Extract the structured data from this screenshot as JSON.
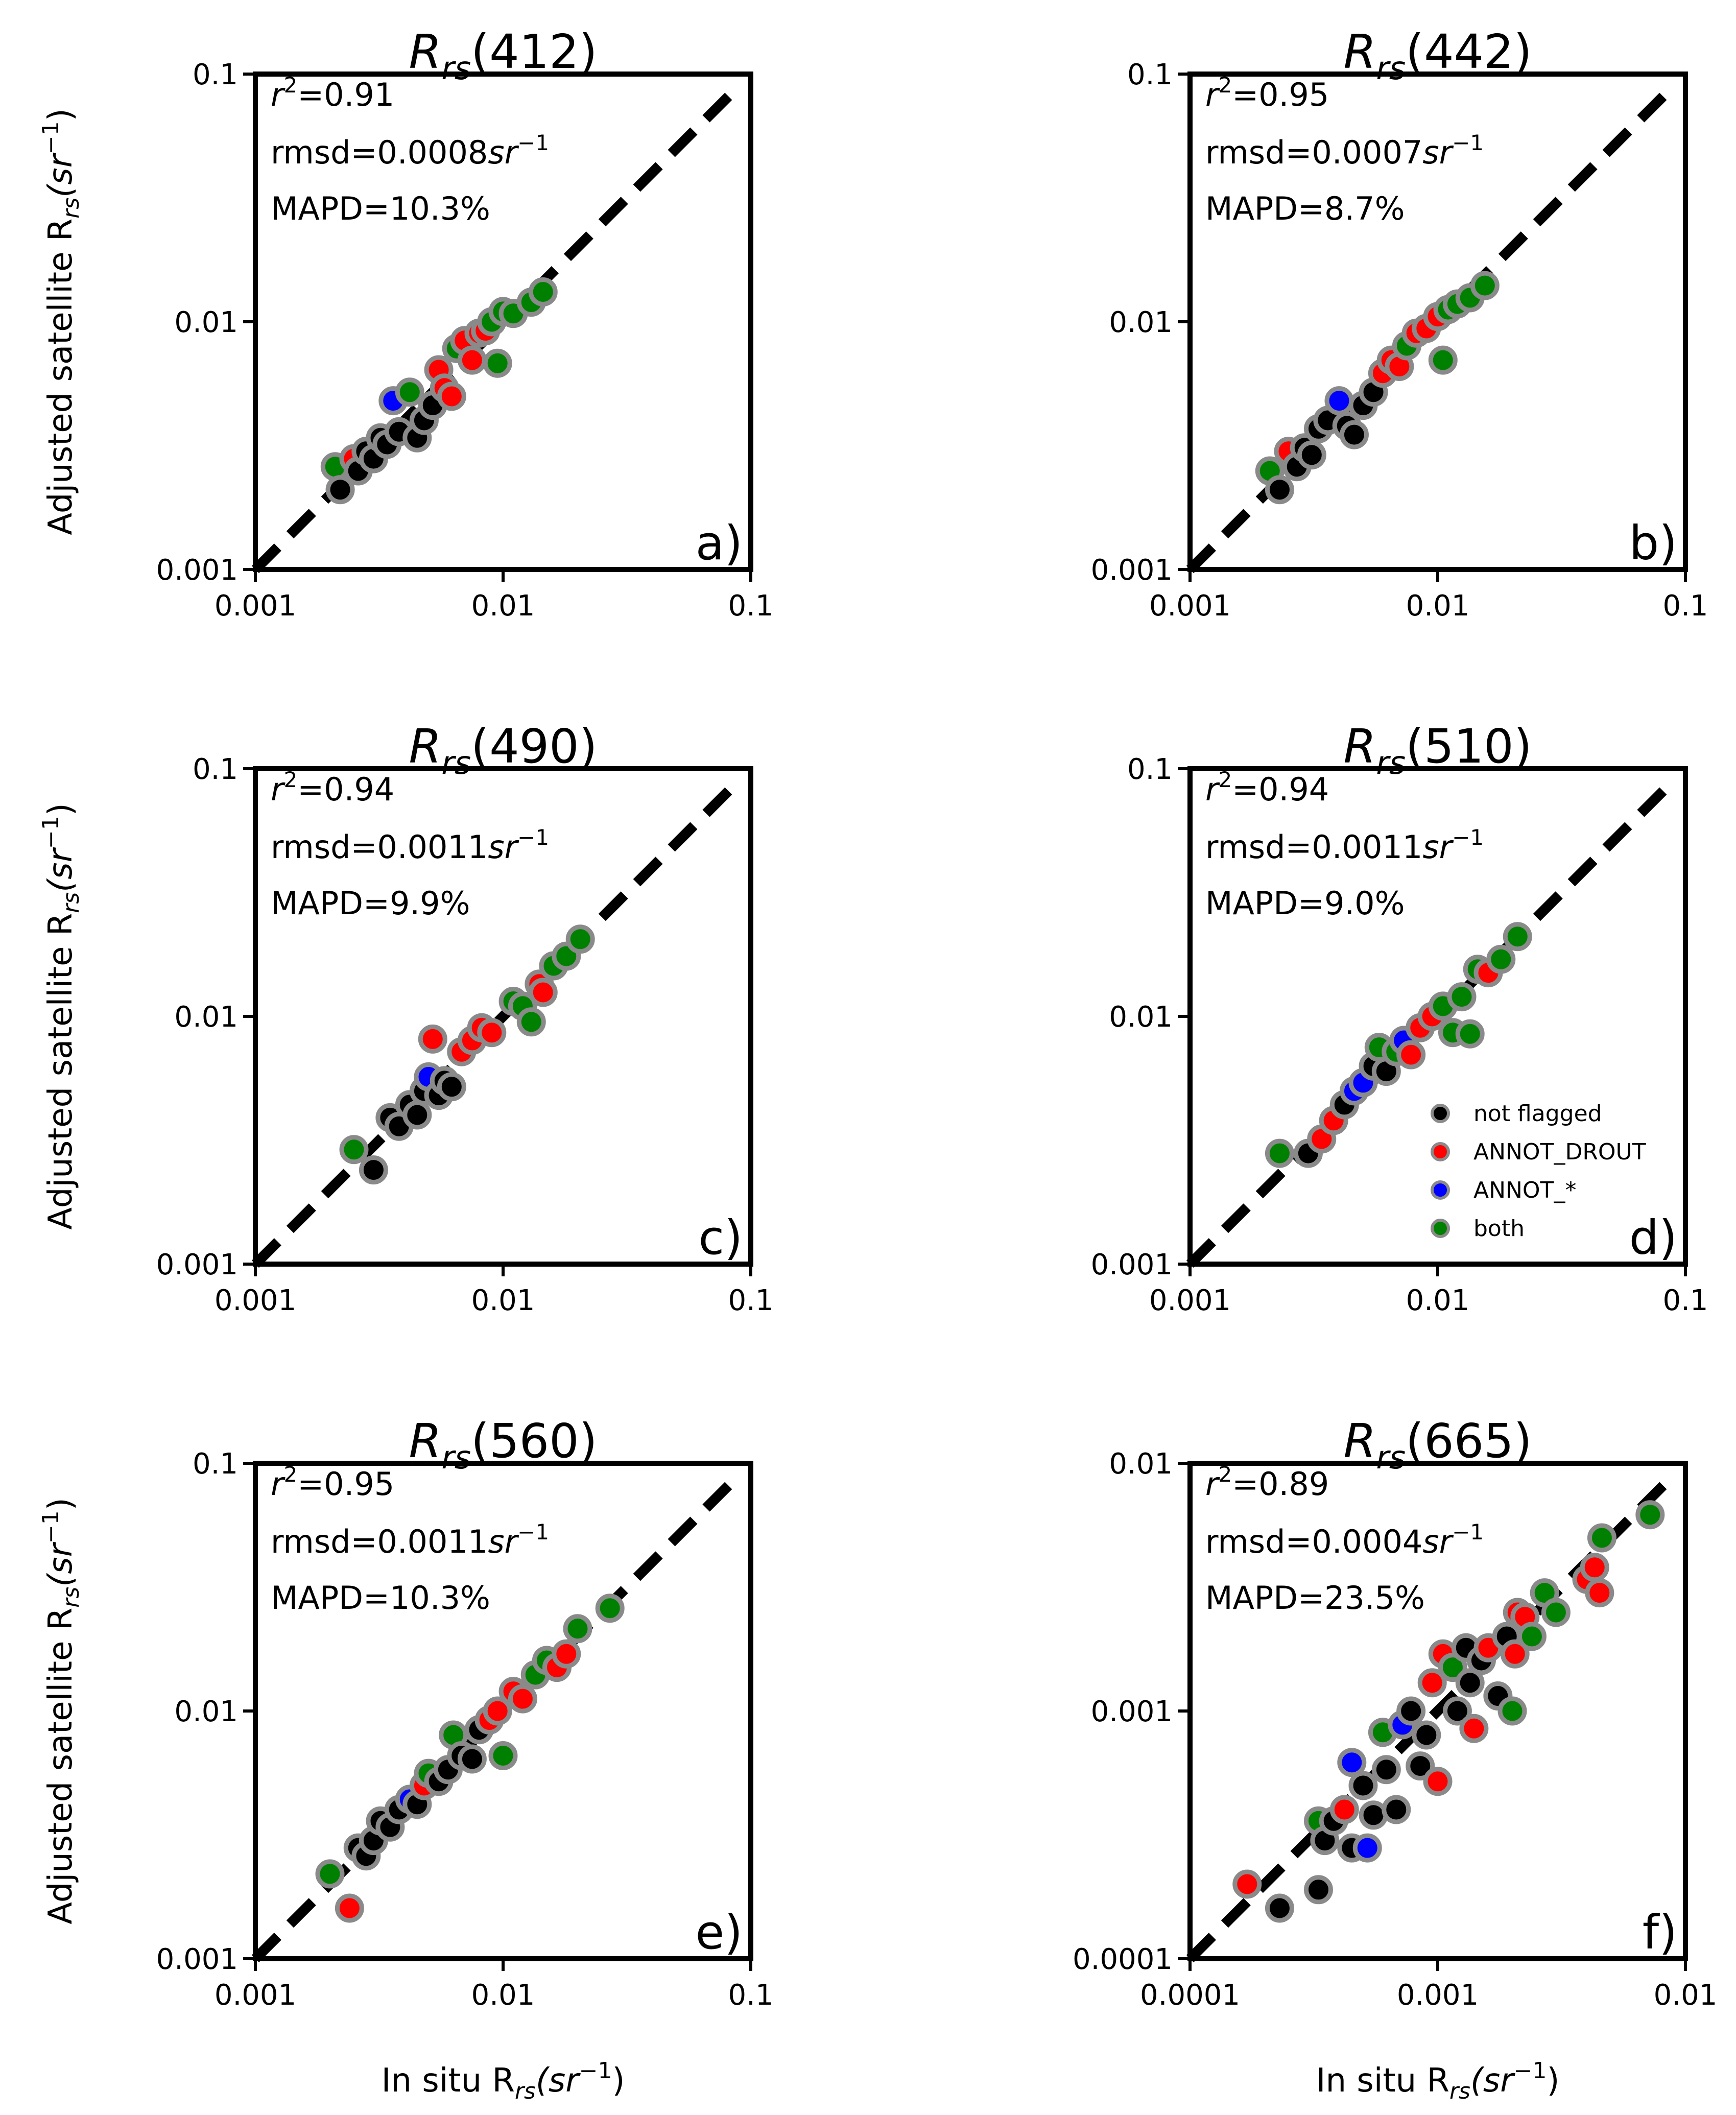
{
  "figure": {
    "xlabel": "In situ R",
    "xlabel_sub": "rs",
    "xlabel_unit_open": "(sr",
    "xlabel_unit_exp": "−1",
    "xlabel_unit_close": ")",
    "ylabel": "Adjusted satellite R",
    "ylabel_sub": "rs",
    "ylabel_unit_open": "(sr",
    "ylabel_unit_exp": "−1",
    "ylabel_unit_close": ")",
    "stat_r2_prefix": "r",
    "stat_r2_exp": "2",
    "stat_rmsd_unit": "sr",
    "stat_rmsd_exp": "−1",
    "legend": [
      {
        "label": "not flagged",
        "color": "#000000"
      },
      {
        "label": "ANNOT_DROUT",
        "color": "#ff0000"
      },
      {
        "label": "ANNOT_*",
        "color": "#0000ff"
      },
      {
        "label": "both",
        "color": "#008000"
      }
    ]
  },
  "chart_data": [
    {
      "type": "scatter",
      "title_prefix": "R",
      "title_sub": "rs",
      "title_band": "(412)",
      "panel_label": "a)",
      "xlim": [
        0.001,
        0.1
      ],
      "ylim": [
        0.001,
        0.1
      ],
      "scale": "log",
      "ticks": [
        "0.001",
        "0.01",
        "0.1"
      ],
      "r2": "=0.91",
      "rmsd": "rmsd=0.0008",
      "mapd": "MAPD=10.3%",
      "points": [
        {
          "x": 0.0021,
          "y": 0.0026,
          "c": "green"
        },
        {
          "x": 0.0022,
          "y": 0.0021,
          "c": "black"
        },
        {
          "x": 0.0025,
          "y": 0.0028,
          "c": "red"
        },
        {
          "x": 0.0026,
          "y": 0.0025,
          "c": "black"
        },
        {
          "x": 0.0028,
          "y": 0.003,
          "c": "black"
        },
        {
          "x": 0.003,
          "y": 0.0028,
          "c": "black"
        },
        {
          "x": 0.0032,
          "y": 0.0034,
          "c": "black"
        },
        {
          "x": 0.0034,
          "y": 0.0032,
          "c": "black"
        },
        {
          "x": 0.0036,
          "y": 0.0048,
          "c": "blue"
        },
        {
          "x": 0.0038,
          "y": 0.0036,
          "c": "black"
        },
        {
          "x": 0.0042,
          "y": 0.0052,
          "c": "green"
        },
        {
          "x": 0.0045,
          "y": 0.0034,
          "c": "black"
        },
        {
          "x": 0.0048,
          "y": 0.004,
          "c": "black"
        },
        {
          "x": 0.0052,
          "y": 0.0046,
          "c": "black"
        },
        {
          "x": 0.0055,
          "y": 0.0064,
          "c": "red"
        },
        {
          "x": 0.0058,
          "y": 0.0054,
          "c": "red"
        },
        {
          "x": 0.0062,
          "y": 0.005,
          "c": "red"
        },
        {
          "x": 0.0065,
          "y": 0.0078,
          "c": "green"
        },
        {
          "x": 0.007,
          "y": 0.0084,
          "c": "red"
        },
        {
          "x": 0.0075,
          "y": 0.007,
          "c": "red"
        },
        {
          "x": 0.008,
          "y": 0.009,
          "c": "red"
        },
        {
          "x": 0.0085,
          "y": 0.0092,
          "c": "red"
        },
        {
          "x": 0.009,
          "y": 0.01,
          "c": "green"
        },
        {
          "x": 0.0095,
          "y": 0.0068,
          "c": "green"
        },
        {
          "x": 0.01,
          "y": 0.011,
          "c": "green"
        },
        {
          "x": 0.011,
          "y": 0.0108,
          "c": "green"
        },
        {
          "x": 0.013,
          "y": 0.012,
          "c": "green"
        },
        {
          "x": 0.0145,
          "y": 0.0132,
          "c": "green"
        }
      ]
    },
    {
      "type": "scatter",
      "title_prefix": "R",
      "title_sub": "rs",
      "title_band": "(442)",
      "panel_label": "b)",
      "xlim": [
        0.001,
        0.1
      ],
      "ylim": [
        0.001,
        0.1
      ],
      "scale": "log",
      "ticks": [
        "0.001",
        "0.01",
        "0.1"
      ],
      "r2": "=0.95",
      "rmsd": "rmsd=0.0007",
      "mapd": "MAPD=8.7%",
      "points": [
        {
          "x": 0.0021,
          "y": 0.0025,
          "c": "green"
        },
        {
          "x": 0.0023,
          "y": 0.0021,
          "c": "black"
        },
        {
          "x": 0.0025,
          "y": 0.003,
          "c": "red"
        },
        {
          "x": 0.0027,
          "y": 0.0026,
          "c": "black"
        },
        {
          "x": 0.0029,
          "y": 0.0031,
          "c": "black"
        },
        {
          "x": 0.0031,
          "y": 0.0029,
          "c": "black"
        },
        {
          "x": 0.0033,
          "y": 0.0037,
          "c": "black"
        },
        {
          "x": 0.0036,
          "y": 0.004,
          "c": "black"
        },
        {
          "x": 0.004,
          "y": 0.0048,
          "c": "blue"
        },
        {
          "x": 0.0043,
          "y": 0.0038,
          "c": "black"
        },
        {
          "x": 0.0046,
          "y": 0.0035,
          "c": "black"
        },
        {
          "x": 0.005,
          "y": 0.0046,
          "c": "black"
        },
        {
          "x": 0.0055,
          "y": 0.0052,
          "c": "black"
        },
        {
          "x": 0.006,
          "y": 0.0062,
          "c": "red"
        },
        {
          "x": 0.0065,
          "y": 0.007,
          "c": "red"
        },
        {
          "x": 0.007,
          "y": 0.0066,
          "c": "red"
        },
        {
          "x": 0.0075,
          "y": 0.008,
          "c": "green"
        },
        {
          "x": 0.0082,
          "y": 0.009,
          "c": "red"
        },
        {
          "x": 0.009,
          "y": 0.0094,
          "c": "red"
        },
        {
          "x": 0.01,
          "y": 0.0105,
          "c": "red"
        },
        {
          "x": 0.0105,
          "y": 0.007,
          "c": "green"
        },
        {
          "x": 0.011,
          "y": 0.0112,
          "c": "green"
        },
        {
          "x": 0.012,
          "y": 0.0118,
          "c": "green"
        },
        {
          "x": 0.0135,
          "y": 0.0125,
          "c": "green"
        },
        {
          "x": 0.0155,
          "y": 0.014,
          "c": "green"
        }
      ]
    },
    {
      "type": "scatter",
      "title_prefix": "R",
      "title_sub": "rs",
      "title_band": "(490)",
      "panel_label": "c)",
      "xlim": [
        0.001,
        0.1
      ],
      "ylim": [
        0.001,
        0.1
      ],
      "scale": "log",
      "ticks": [
        "0.001",
        "0.01",
        "0.1"
      ],
      "r2": "=0.94",
      "rmsd": "rmsd=0.0011",
      "mapd": "MAPD=9.9%",
      "points": [
        {
          "x": 0.0025,
          "y": 0.0029,
          "c": "green"
        },
        {
          "x": 0.003,
          "y": 0.0024,
          "c": "black"
        },
        {
          "x": 0.0035,
          "y": 0.0039,
          "c": "black"
        },
        {
          "x": 0.0038,
          "y": 0.0036,
          "c": "black"
        },
        {
          "x": 0.0042,
          "y": 0.0044,
          "c": "black"
        },
        {
          "x": 0.0045,
          "y": 0.004,
          "c": "black"
        },
        {
          "x": 0.0048,
          "y": 0.005,
          "c": "black"
        },
        {
          "x": 0.005,
          "y": 0.0057,
          "c": "blue"
        },
        {
          "x": 0.0052,
          "y": 0.0081,
          "c": "red"
        },
        {
          "x": 0.0055,
          "y": 0.0048,
          "c": "black"
        },
        {
          "x": 0.0058,
          "y": 0.0055,
          "c": "black"
        },
        {
          "x": 0.0062,
          "y": 0.0052,
          "c": "black"
        },
        {
          "x": 0.0068,
          "y": 0.0072,
          "c": "red"
        },
        {
          "x": 0.0075,
          "y": 0.008,
          "c": "red"
        },
        {
          "x": 0.0082,
          "y": 0.009,
          "c": "red"
        },
        {
          "x": 0.009,
          "y": 0.0086,
          "c": "red"
        },
        {
          "x": 0.011,
          "y": 0.0115,
          "c": "green"
        },
        {
          "x": 0.012,
          "y": 0.011,
          "c": "green"
        },
        {
          "x": 0.013,
          "y": 0.0095,
          "c": "green"
        },
        {
          "x": 0.014,
          "y": 0.0135,
          "c": "red"
        },
        {
          "x": 0.0145,
          "y": 0.0125,
          "c": "red"
        },
        {
          "x": 0.016,
          "y": 0.016,
          "c": "green"
        },
        {
          "x": 0.018,
          "y": 0.0175,
          "c": "green"
        },
        {
          "x": 0.0205,
          "y": 0.0205,
          "c": "green"
        }
      ]
    },
    {
      "type": "scatter",
      "title_prefix": "R",
      "title_sub": "rs",
      "title_band": "(510)",
      "panel_label": "d)",
      "xlim": [
        0.001,
        0.1
      ],
      "ylim": [
        0.001,
        0.1
      ],
      "scale": "log",
      "ticks": [
        "0.001",
        "0.01",
        "0.1"
      ],
      "r2": "=0.94",
      "rmsd": "rmsd=0.0011",
      "mapd": "MAPD=9.0%",
      "points": [
        {
          "x": 0.0023,
          "y": 0.0028,
          "c": "green"
        },
        {
          "x": 0.003,
          "y": 0.0028,
          "c": "black"
        },
        {
          "x": 0.0034,
          "y": 0.0032,
          "c": "red"
        },
        {
          "x": 0.0038,
          "y": 0.0038,
          "c": "red"
        },
        {
          "x": 0.0042,
          "y": 0.0044,
          "c": "black"
        },
        {
          "x": 0.0046,
          "y": 0.005,
          "c": "blue"
        },
        {
          "x": 0.005,
          "y": 0.0054,
          "c": "blue"
        },
        {
          "x": 0.0055,
          "y": 0.0063,
          "c": "black"
        },
        {
          "x": 0.0058,
          "y": 0.0075,
          "c": "green"
        },
        {
          "x": 0.0062,
          "y": 0.006,
          "c": "black"
        },
        {
          "x": 0.0068,
          "y": 0.0072,
          "c": "green"
        },
        {
          "x": 0.0073,
          "y": 0.008,
          "c": "blue"
        },
        {
          "x": 0.0078,
          "y": 0.007,
          "c": "red"
        },
        {
          "x": 0.0085,
          "y": 0.009,
          "c": "red"
        },
        {
          "x": 0.0095,
          "y": 0.01,
          "c": "red"
        },
        {
          "x": 0.0105,
          "y": 0.011,
          "c": "green"
        },
        {
          "x": 0.0115,
          "y": 0.0086,
          "c": "green"
        },
        {
          "x": 0.0125,
          "y": 0.012,
          "c": "green"
        },
        {
          "x": 0.0135,
          "y": 0.0085,
          "c": "green"
        },
        {
          "x": 0.0145,
          "y": 0.0155,
          "c": "green"
        },
        {
          "x": 0.016,
          "y": 0.015,
          "c": "red"
        },
        {
          "x": 0.018,
          "y": 0.017,
          "c": "green"
        },
        {
          "x": 0.021,
          "y": 0.021,
          "c": "green"
        }
      ]
    },
    {
      "type": "scatter",
      "title_prefix": "R",
      "title_sub": "rs",
      "title_band": "(560)",
      "panel_label": "e)",
      "xlim": [
        0.001,
        0.1
      ],
      "ylim": [
        0.001,
        0.1
      ],
      "scale": "log",
      "ticks": [
        "0.001",
        "0.01",
        "0.1"
      ],
      "r2": "=0.95",
      "rmsd": "rmsd=0.0011",
      "mapd": "MAPD=10.3%",
      "points": [
        {
          "x": 0.002,
          "y": 0.0022,
          "c": "green"
        },
        {
          "x": 0.0024,
          "y": 0.0016,
          "c": "red"
        },
        {
          "x": 0.0026,
          "y": 0.0028,
          "c": "black"
        },
        {
          "x": 0.0028,
          "y": 0.0026,
          "c": "black"
        },
        {
          "x": 0.003,
          "y": 0.003,
          "c": "black"
        },
        {
          "x": 0.0032,
          "y": 0.0036,
          "c": "black"
        },
        {
          "x": 0.0035,
          "y": 0.0034,
          "c": "black"
        },
        {
          "x": 0.0038,
          "y": 0.004,
          "c": "black"
        },
        {
          "x": 0.0042,
          "y": 0.0044,
          "c": "blue"
        },
        {
          "x": 0.0045,
          "y": 0.0042,
          "c": "black"
        },
        {
          "x": 0.0048,
          "y": 0.005,
          "c": "red"
        },
        {
          "x": 0.005,
          "y": 0.0056,
          "c": "green"
        },
        {
          "x": 0.0055,
          "y": 0.0052,
          "c": "black"
        },
        {
          "x": 0.006,
          "y": 0.0058,
          "c": "black"
        },
        {
          "x": 0.0063,
          "y": 0.008,
          "c": "green"
        },
        {
          "x": 0.0068,
          "y": 0.0066,
          "c": "black"
        },
        {
          "x": 0.0075,
          "y": 0.0064,
          "c": "black"
        },
        {
          "x": 0.008,
          "y": 0.0084,
          "c": "black"
        },
        {
          "x": 0.0088,
          "y": 0.0092,
          "c": "red"
        },
        {
          "x": 0.0095,
          "y": 0.01,
          "c": "red"
        },
        {
          "x": 0.01,
          "y": 0.0066,
          "c": "green"
        },
        {
          "x": 0.011,
          "y": 0.012,
          "c": "red"
        },
        {
          "x": 0.012,
          "y": 0.0112,
          "c": "red"
        },
        {
          "x": 0.0135,
          "y": 0.014,
          "c": "green"
        },
        {
          "x": 0.015,
          "y": 0.016,
          "c": "green"
        },
        {
          "x": 0.0165,
          "y": 0.015,
          "c": "red"
        },
        {
          "x": 0.018,
          "y": 0.017,
          "c": "red"
        },
        {
          "x": 0.02,
          "y": 0.0215,
          "c": "green"
        },
        {
          "x": 0.027,
          "y": 0.026,
          "c": "green"
        }
      ]
    },
    {
      "type": "scatter",
      "title_prefix": "R",
      "title_sub": "rs",
      "title_band": "(665)",
      "panel_label": "f)",
      "xlim": [
        0.0001,
        0.01
      ],
      "ylim": [
        0.0001,
        0.01
      ],
      "scale": "log",
      "ticks": [
        "0.0001",
        "0.001",
        "0.01"
      ],
      "r2": "=0.89",
      "rmsd": "rmsd=0.0004",
      "mapd": "MAPD=23.5%",
      "points": [
        {
          "x": 0.00017,
          "y": 0.0002,
          "c": "red"
        },
        {
          "x": 0.00023,
          "y": 0.00016,
          "c": "black"
        },
        {
          "x": 0.00033,
          "y": 0.00019,
          "c": "black"
        },
        {
          "x": 0.00033,
          "y": 0.00036,
          "c": "green"
        },
        {
          "x": 0.00035,
          "y": 0.0003,
          "c": "black"
        },
        {
          "x": 0.00038,
          "y": 0.00036,
          "c": "black"
        },
        {
          "x": 0.00042,
          "y": 0.0004,
          "c": "red"
        },
        {
          "x": 0.00045,
          "y": 0.00062,
          "c": "blue"
        },
        {
          "x": 0.00045,
          "y": 0.00028,
          "c": "black"
        },
        {
          "x": 0.0005,
          "y": 0.0005,
          "c": "black"
        },
        {
          "x": 0.00052,
          "y": 0.00028,
          "c": "blue"
        },
        {
          "x": 0.00055,
          "y": 0.00038,
          "c": "black"
        },
        {
          "x": 0.0006,
          "y": 0.00082,
          "c": "green"
        },
        {
          "x": 0.00062,
          "y": 0.00058,
          "c": "black"
        },
        {
          "x": 0.00068,
          "y": 0.0004,
          "c": "black"
        },
        {
          "x": 0.00072,
          "y": 0.00088,
          "c": "blue"
        },
        {
          "x": 0.00078,
          "y": 0.001,
          "c": "black"
        },
        {
          "x": 0.00085,
          "y": 0.0006,
          "c": "black"
        },
        {
          "x": 0.0009,
          "y": 0.0008,
          "c": "black"
        },
        {
          "x": 0.00095,
          "y": 0.0013,
          "c": "red"
        },
        {
          "x": 0.001,
          "y": 0.00052,
          "c": "red"
        },
        {
          "x": 0.00105,
          "y": 0.0017,
          "c": "red"
        },
        {
          "x": 0.00115,
          "y": 0.0015,
          "c": "green"
        },
        {
          "x": 0.0012,
          "y": 0.001,
          "c": "black"
        },
        {
          "x": 0.0013,
          "y": 0.0018,
          "c": "black"
        },
        {
          "x": 0.00135,
          "y": 0.0013,
          "c": "black"
        },
        {
          "x": 0.0014,
          "y": 0.00085,
          "c": "red"
        },
        {
          "x": 0.0015,
          "y": 0.0016,
          "c": "black"
        },
        {
          "x": 0.0016,
          "y": 0.0018,
          "c": "red"
        },
        {
          "x": 0.00175,
          "y": 0.00115,
          "c": "black"
        },
        {
          "x": 0.0019,
          "y": 0.002,
          "c": "black"
        },
        {
          "x": 0.002,
          "y": 0.001,
          "c": "green"
        },
        {
          "x": 0.00205,
          "y": 0.0017,
          "c": "red"
        },
        {
          "x": 0.0021,
          "y": 0.0025,
          "c": "red"
        },
        {
          "x": 0.00225,
          "y": 0.0024,
          "c": "red"
        },
        {
          "x": 0.0024,
          "y": 0.002,
          "c": "green"
        },
        {
          "x": 0.0027,
          "y": 0.003,
          "c": "green"
        },
        {
          "x": 0.003,
          "y": 0.0025,
          "c": "green"
        },
        {
          "x": 0.004,
          "y": 0.0034,
          "c": "red"
        },
        {
          "x": 0.0043,
          "y": 0.0038,
          "c": "red"
        },
        {
          "x": 0.0045,
          "y": 0.003,
          "c": "red"
        },
        {
          "x": 0.0046,
          "y": 0.005,
          "c": "green"
        },
        {
          "x": 0.0072,
          "y": 0.0062,
          "c": "green"
        }
      ]
    }
  ]
}
